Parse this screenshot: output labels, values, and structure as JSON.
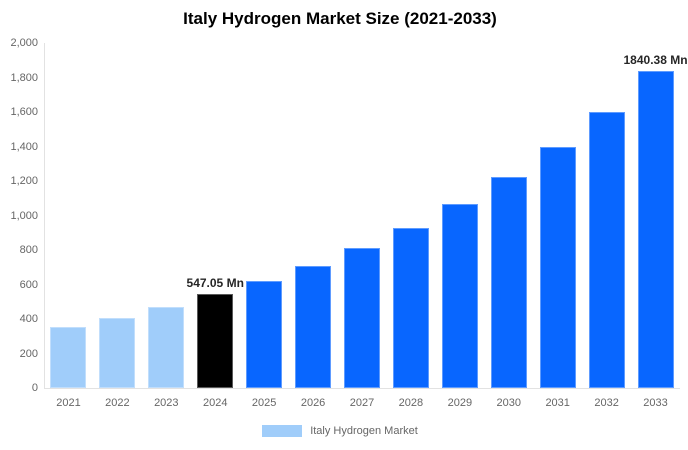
{
  "title": "Italy Hydrogen Market Size (2021-2033)",
  "legend": {
    "label": "Italy Hydrogen Market",
    "swatch_color": "#A0CDFA"
  },
  "colors": {
    "light_blue": "#A0CDFA",
    "highlight_black": "#000000",
    "bright_blue": "#0866FF",
    "axis_line": "#E2E2E2",
    "tick_text": "#666666",
    "annotation_text": "#262626",
    "background": "#FFFFFF"
  },
  "chart_data": {
    "type": "bar",
    "title": "Italy Hydrogen Market Size (2021-2033)",
    "categories": [
      "2021",
      "2022",
      "2023",
      "2024",
      "2025",
      "2026",
      "2027",
      "2028",
      "2029",
      "2030",
      "2031",
      "2032",
      "2033"
    ],
    "values": [
      355,
      408,
      470,
      547.05,
      618,
      710,
      813,
      930,
      1066,
      1222,
      1400,
      1602,
      1840.38
    ],
    "bar_colors": [
      "#A0CDFA",
      "#A0CDFA",
      "#A0CDFA",
      "#000000",
      "#0866FF",
      "#0866FF",
      "#0866FF",
      "#0866FF",
      "#0866FF",
      "#0866FF",
      "#0866FF",
      "#0866FF",
      "#0866FF"
    ],
    "annotations": [
      {
        "category": "2024",
        "text": "547.05 Mn"
      },
      {
        "category": "2033",
        "text": "1840.38 Mn"
      }
    ],
    "xlabel": "",
    "ylabel": "",
    "ylim": [
      0,
      2000
    ],
    "ytick_step": 200,
    "grid": false,
    "legend_position": "bottom",
    "legend_entries": [
      "Italy Hydrogen Market"
    ],
    "units": "Mn"
  }
}
